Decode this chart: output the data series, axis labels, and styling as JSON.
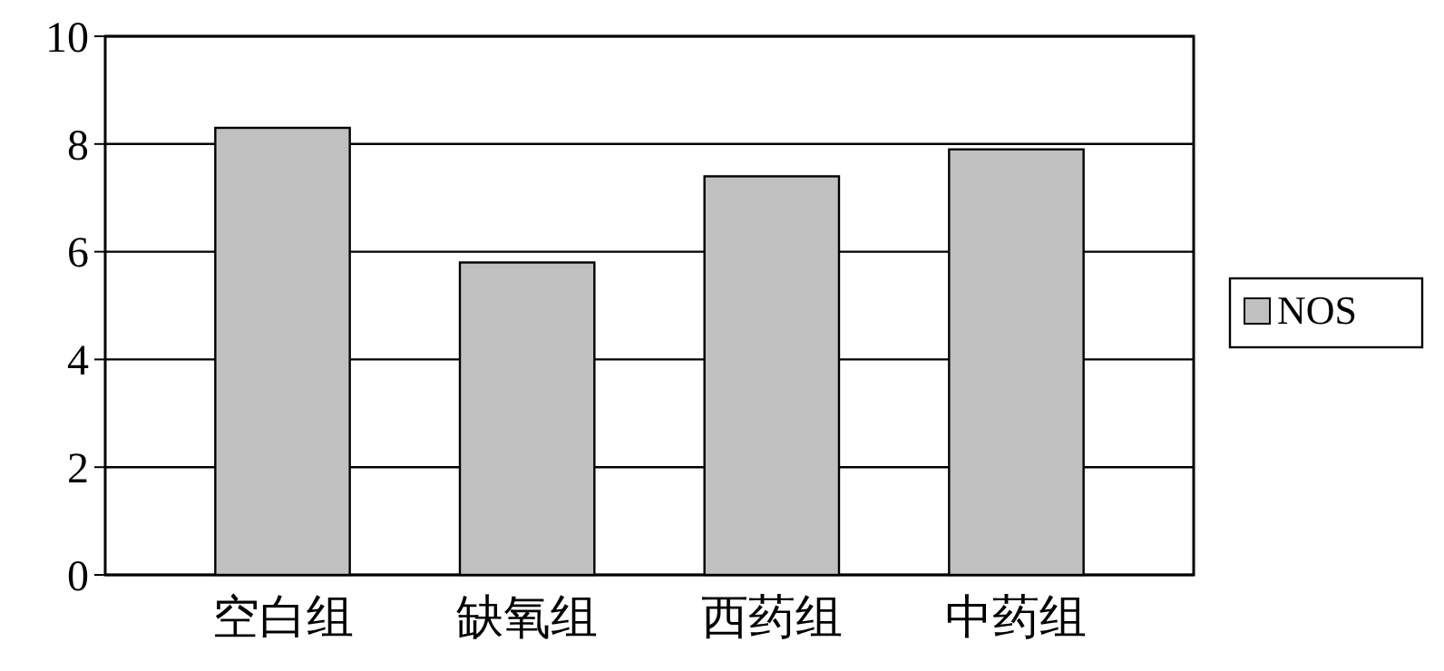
{
  "chart_data": {
    "type": "bar",
    "categories": [
      "空白组",
      "缺氧组",
      "西药组",
      "中药组"
    ],
    "series": [
      {
        "name": "NOS",
        "color": "#c0c0c0",
        "values": [
          8.3,
          5.8,
          7.4,
          7.9
        ]
      }
    ],
    "ylim": [
      0,
      10
    ],
    "yticks": [
      0,
      2,
      4,
      6,
      8,
      10
    ],
    "grid": "y",
    "legend": "right"
  }
}
